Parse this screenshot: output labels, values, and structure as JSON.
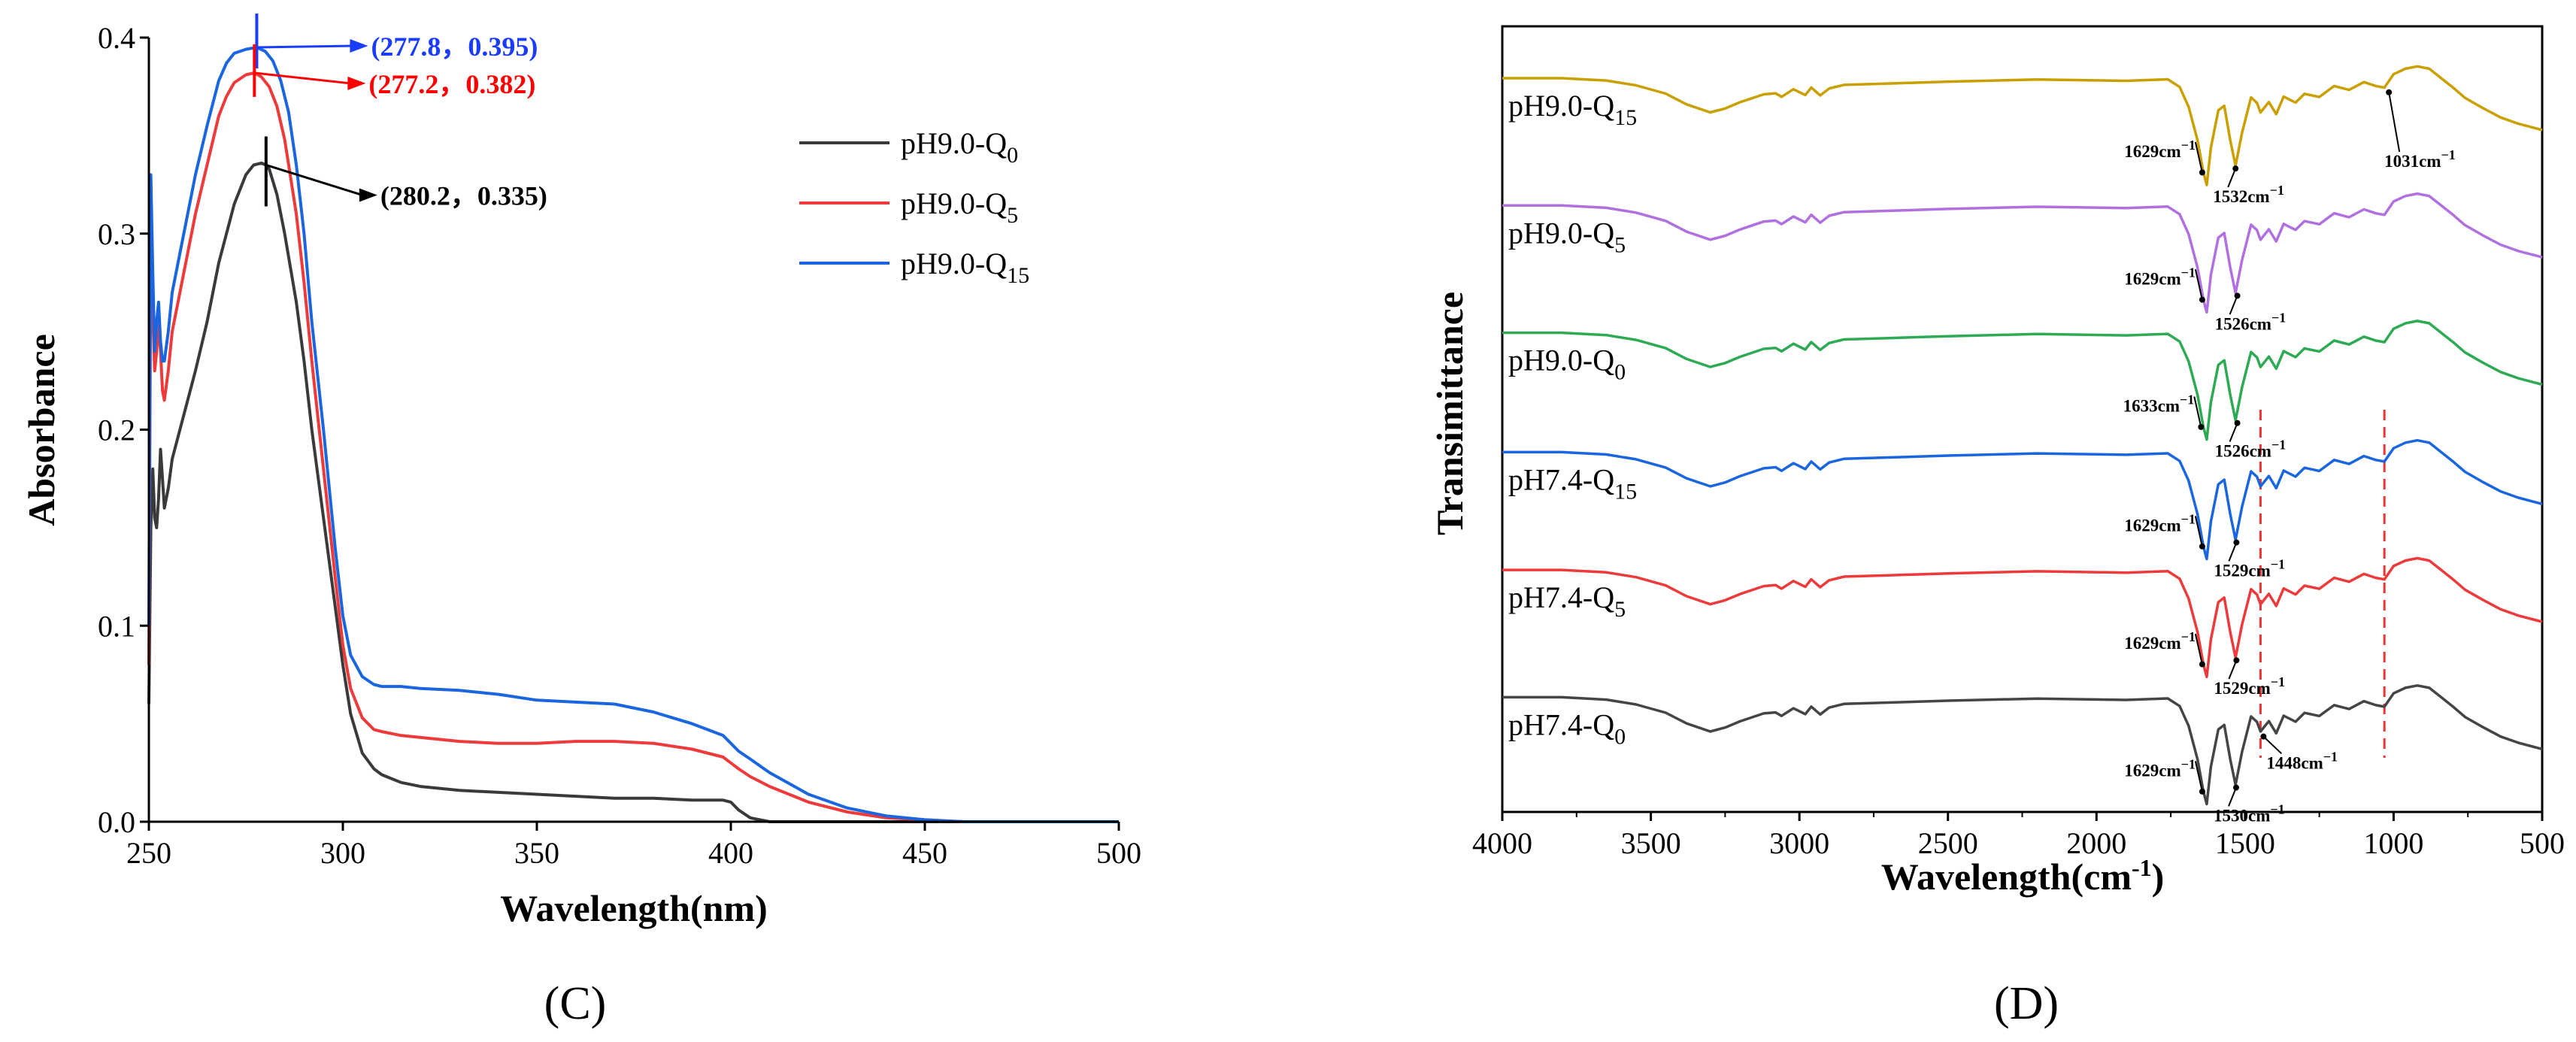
{
  "chart_data": [
    {
      "panel": "(C)",
      "type": "line",
      "xlabel": "Wavelength(nm)",
      "ylabel": "Absorbance",
      "xlim": [
        250,
        500
      ],
      "ylim": [
        0,
        0.4
      ],
      "xticks": [
        "250",
        "300",
        "350",
        "400",
        "450",
        "500"
      ],
      "yticks": [
        "0.0",
        "0.1",
        "0.2",
        "0.3",
        "0.4"
      ],
      "legend": "top-right",
      "series": [
        {
          "name": "pH9.0-Q0",
          "label_base": "pH9.0-Q",
          "label_sub": "0",
          "color": "#3a3a3a",
          "x": [
            250,
            250.5,
            251,
            251.5,
            252,
            252.5,
            253,
            253.5,
            254,
            255,
            256,
            258,
            260,
            262,
            265,
            268,
            270,
            272,
            275,
            277,
            279,
            280.2,
            281,
            283,
            285,
            288,
            290,
            292,
            295,
            298,
            300,
            302,
            305,
            308,
            310,
            315,
            320,
            330,
            340,
            350,
            360,
            370,
            380,
            390,
            398,
            400,
            402,
            405,
            410,
            420,
            430,
            450,
            500
          ],
          "y": [
            0.06,
            0.15,
            0.18,
            0.155,
            0.15,
            0.165,
            0.19,
            0.175,
            0.16,
            0.17,
            0.185,
            0.2,
            0.215,
            0.23,
            0.255,
            0.285,
            0.3,
            0.315,
            0.33,
            0.335,
            0.336,
            0.335,
            0.333,
            0.32,
            0.3,
            0.265,
            0.235,
            0.2,
            0.155,
            0.11,
            0.08,
            0.055,
            0.035,
            0.027,
            0.024,
            0.02,
            0.018,
            0.016,
            0.015,
            0.014,
            0.013,
            0.012,
            0.012,
            0.011,
            0.011,
            0.01,
            0.006,
            0.002,
            0,
            0,
            0,
            0,
            0
          ]
        },
        {
          "name": "pH9.0-Q5",
          "label_base": "pH9.0-Q",
          "label_sub": "5",
          "color": "#ee3a3a",
          "x": [
            250,
            250.5,
            251,
            251.5,
            252,
            252.5,
            253,
            253.5,
            254,
            255,
            256,
            258,
            260,
            262,
            265,
            268,
            270,
            272,
            275,
            277.2,
            279,
            281,
            283,
            285,
            288,
            290,
            292,
            295,
            298,
            300,
            302,
            305,
            308,
            310,
            315,
            320,
            330,
            340,
            350,
            360,
            370,
            380,
            390,
            398,
            400,
            402,
            405,
            410,
            420,
            430,
            440,
            450,
            460,
            500
          ],
          "y": [
            0.08,
            0.3,
            0.26,
            0.23,
            0.24,
            0.255,
            0.24,
            0.22,
            0.215,
            0.23,
            0.25,
            0.27,
            0.29,
            0.31,
            0.335,
            0.36,
            0.37,
            0.377,
            0.381,
            0.382,
            0.38,
            0.375,
            0.365,
            0.348,
            0.31,
            0.275,
            0.235,
            0.18,
            0.125,
            0.09,
            0.068,
            0.053,
            0.047,
            0.046,
            0.044,
            0.043,
            0.041,
            0.04,
            0.04,
            0.041,
            0.041,
            0.04,
            0.037,
            0.033,
            0.03,
            0.027,
            0.023,
            0.018,
            0.01,
            0.005,
            0.002,
            0.001,
            0,
            0
          ]
        },
        {
          "name": "pH9.0-Q15",
          "label_base": "pH9.0-Q",
          "label_sub": "15",
          "color": "#1a66e0",
          "x": [
            250,
            250.5,
            251,
            251.5,
            252,
            252.5,
            253,
            253.5,
            254,
            255,
            256,
            258,
            260,
            262,
            265,
            268,
            270,
            272,
            275,
            277.8,
            280,
            282,
            284,
            286,
            288,
            290,
            292,
            295,
            298,
            300,
            302,
            305,
            308,
            310,
            315,
            320,
            330,
            340,
            350,
            360,
            370,
            380,
            390,
            398,
            400,
            402,
            405,
            410,
            420,
            430,
            440,
            450,
            460,
            500
          ],
          "y": [
            0.1,
            0.33,
            0.28,
            0.24,
            0.255,
            0.265,
            0.245,
            0.235,
            0.235,
            0.25,
            0.27,
            0.29,
            0.31,
            0.33,
            0.355,
            0.378,
            0.387,
            0.392,
            0.394,
            0.395,
            0.393,
            0.388,
            0.378,
            0.362,
            0.335,
            0.3,
            0.255,
            0.2,
            0.14,
            0.105,
            0.085,
            0.074,
            0.07,
            0.069,
            0.069,
            0.068,
            0.067,
            0.065,
            0.062,
            0.061,
            0.06,
            0.056,
            0.05,
            0.044,
            0.04,
            0.036,
            0.032,
            0.025,
            0.014,
            0.007,
            0.003,
            0.001,
            0,
            0
          ]
        }
      ],
      "annotations": [
        {
          "text": "(277.8，0.395)",
          "x": 277.8,
          "y": 0.395,
          "color": "#1a3cff"
        },
        {
          "text": "(277.2，0.382)",
          "x": 277.2,
          "y": 0.382,
          "color": "#ff0000"
        },
        {
          "text": "(280.2，0.335)",
          "x": 280.2,
          "y": 0.335,
          "color": "#000000"
        }
      ]
    },
    {
      "panel": "(D)",
      "type": "line",
      "xlabel": "Wavelength(cm-1)",
      "xlabel_base": "Wavelength(cm",
      "xlabel_sup": "-1",
      "xlabel_close": ")",
      "ylabel": "Transimittance",
      "xlim": [
        4000,
        500
      ],
      "xticks": [
        "4000",
        "3500",
        "3000",
        "2500",
        "2000",
        "1500",
        "1000",
        "500"
      ],
      "reference_lines": [
        1448,
        1031
      ],
      "series": [
        {
          "name": "pH9.0-Q15",
          "label_base": "pH9.0-Q",
          "label_sub": "15",
          "color": "#c9a000",
          "baseline": 0.934,
          "peaks": [
            {
              "label": "1629cm-1",
              "x": 1629
            },
            {
              "label": "1532cm-1",
              "x": 1532
            },
            {
              "label": "1031cm-1",
              "x": 1031
            }
          ]
        },
        {
          "name": "pH9.0-Q5",
          "label_base": "pH9.0-Q",
          "label_sub": "5",
          "color": "#b070e0",
          "baseline": 0.772,
          "peaks": [
            {
              "label": "1629cm-1",
              "x": 1629
            },
            {
              "label": "1526cm-1",
              "x": 1526
            }
          ]
        },
        {
          "name": "pH9.0-Q0",
          "label_base": "pH9.0-Q",
          "label_sub": "0",
          "color": "#2eaa55",
          "baseline": 0.61,
          "peaks": [
            {
              "label": "1633cm-1",
              "x": 1633
            },
            {
              "label": "1526cm-1",
              "x": 1526
            }
          ]
        },
        {
          "name": "pH7.4-Q15",
          "label_base": "pH7.4-Q",
          "label_sub": "15",
          "color": "#1a66e0",
          "baseline": 0.458,
          "peaks": [
            {
              "label": "1629cm-1",
              "x": 1629
            },
            {
              "label": "1529cm-1",
              "x": 1529
            }
          ]
        },
        {
          "name": "pH7.4-Q5",
          "label_base": "pH7.4-Q",
          "label_sub": "5",
          "color": "#ee3a3a",
          "baseline": 0.308,
          "peaks": [
            {
              "label": "1629cm-1",
              "x": 1629
            },
            {
              "label": "1529cm-1",
              "x": 1529
            }
          ]
        },
        {
          "name": "pH7.4-Q0",
          "label_base": "pH7.4-Q",
          "label_sub": "0",
          "color": "#454545",
          "baseline": 0.146,
          "peaks": [
            {
              "label": "1629cm-1",
              "x": 1629
            },
            {
              "label": "1530cm-1",
              "x": 1530
            },
            {
              "label": "1448cm-1",
              "x": 1448
            }
          ]
        }
      ]
    }
  ]
}
